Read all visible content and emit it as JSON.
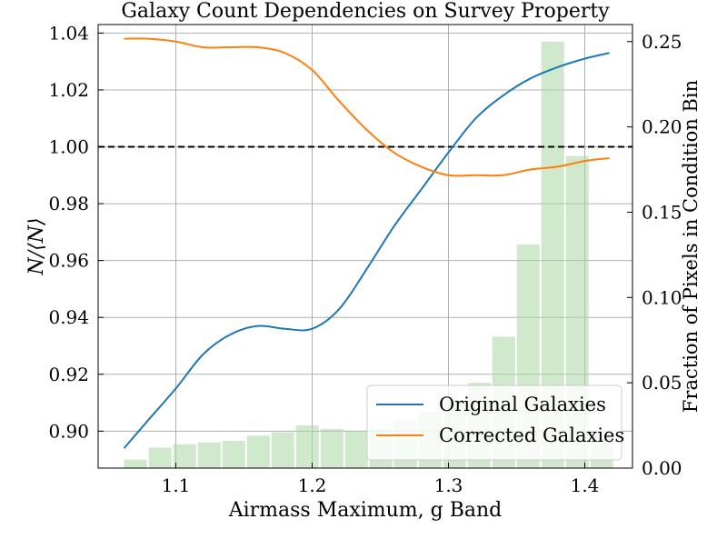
{
  "chart_data": {
    "type": "line",
    "title": "Galaxy Count Dependencies on Survey Property",
    "xlabel": "Airmass Maximum, g Band",
    "ylabel": "N/⟨N⟩",
    "y2label": "Fraction of Pixels in Condition Bin",
    "xlim": [
      1.043,
      1.435
    ],
    "ylim": [
      0.887,
      1.043
    ],
    "y2lim": [
      0.0,
      0.26
    ],
    "grid": true,
    "legend_position": "bottom-right",
    "xticks": [
      "1.1",
      "1.2",
      "1.3",
      "1.4"
    ],
    "yticks": [
      "0.90",
      "0.92",
      "0.94",
      "0.96",
      "0.98",
      "1.00",
      "1.02",
      "1.04"
    ],
    "y2ticks": [
      "0.00",
      "0.05",
      "0.10",
      "0.15",
      "0.20",
      "0.25"
    ],
    "reference_line": 1.0,
    "series": [
      {
        "name": "Original Galaxies",
        "color": "#1f77b4",
        "x": [
          1.062,
          1.08,
          1.1,
          1.12,
          1.14,
          1.16,
          1.18,
          1.2,
          1.22,
          1.24,
          1.26,
          1.28,
          1.3,
          1.32,
          1.34,
          1.36,
          1.38,
          1.4,
          1.418
        ],
        "y": [
          0.894,
          0.904,
          0.915,
          0.927,
          0.934,
          0.937,
          0.936,
          0.936,
          0.943,
          0.957,
          0.972,
          0.985,
          0.998,
          1.01,
          1.018,
          1.024,
          1.028,
          1.031,
          1.033
        ]
      },
      {
        "name": "Corrected Galaxies",
        "color": "#ff7f0e",
        "x": [
          1.062,
          1.08,
          1.1,
          1.12,
          1.14,
          1.16,
          1.18,
          1.2,
          1.22,
          1.24,
          1.26,
          1.28,
          1.3,
          1.32,
          1.34,
          1.36,
          1.38,
          1.4,
          1.418
        ],
        "y": [
          1.038,
          1.038,
          1.037,
          1.035,
          1.035,
          1.035,
          1.033,
          1.027,
          1.016,
          1.006,
          0.998,
          0.993,
          0.99,
          0.99,
          0.99,
          0.992,
          0.993,
          0.995,
          0.996
        ]
      }
    ],
    "histogram": {
      "name": "Fraction of Pixels in Condition Bin",
      "color": "#a9d5a3",
      "bin_centers": [
        1.0705,
        1.0885,
        1.1065,
        1.1245,
        1.1425,
        1.1605,
        1.1785,
        1.1965,
        1.2145,
        1.2325,
        1.2505,
        1.2685,
        1.2865,
        1.3045,
        1.3225,
        1.3405,
        1.3585,
        1.3765,
        1.3945,
        1.4125
      ],
      "bin_width": 0.018,
      "values": [
        0.005,
        0.012,
        0.014,
        0.015,
        0.016,
        0.019,
        0.021,
        0.025,
        0.023,
        0.022,
        0.023,
        0.028,
        0.033,
        0.04,
        0.05,
        0.077,
        0.131,
        0.25,
        0.183,
        0.02
      ]
    }
  }
}
